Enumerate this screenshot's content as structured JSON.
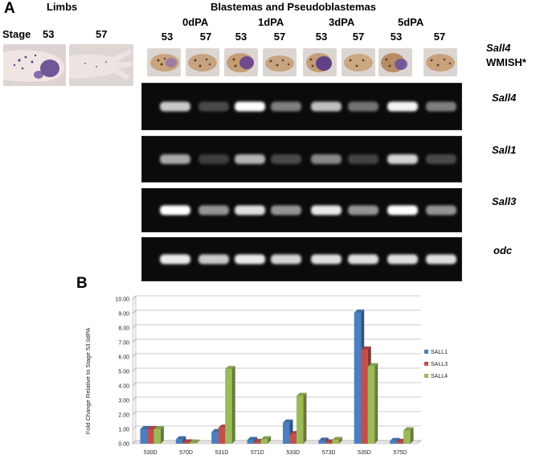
{
  "panel_a": {
    "letter": "A",
    "limbs_header": "Limbs",
    "blastemas_header": "Blastemas and Pseudoblastemas",
    "stage_label": "Stage",
    "limb_stages": [
      "53",
      "57"
    ],
    "timepoints": [
      "0dPA",
      "1dPA",
      "3dPA",
      "5dPA"
    ],
    "lane_stages": [
      "53",
      "57",
      "53",
      "57",
      "53",
      "57",
      "53",
      "57"
    ],
    "wmish_gene": "Sall4",
    "wmish_label": "WMISH*",
    "gel_rows": [
      {
        "gene": "Sall4",
        "intensity": [
          0.75,
          0.15,
          1.0,
          0.4,
          0.7,
          0.35,
          0.95,
          0.4
        ]
      },
      {
        "gene": "Sall1",
        "intensity": [
          0.6,
          0.1,
          0.65,
          0.15,
          0.45,
          0.12,
          0.8,
          0.15
        ]
      },
      {
        "gene": "Sall3",
        "intensity": [
          1.0,
          0.5,
          0.85,
          0.5,
          0.9,
          0.5,
          1.0,
          0.5
        ]
      },
      {
        "gene": "odc",
        "intensity": [
          0.9,
          0.75,
          0.9,
          0.8,
          0.85,
          0.85,
          0.85,
          0.85
        ]
      }
    ]
  },
  "panel_b": {
    "letter": "B"
  },
  "chart_data": {
    "type": "bar",
    "categories": [
      "530D",
      "570D",
      "531D",
      "571D",
      "533D",
      "573D",
      "535D",
      "575D"
    ],
    "series": [
      {
        "name": "SALL1",
        "color": "#4a7fc1",
        "values": [
          1.0,
          0.3,
          0.8,
          0.25,
          1.45,
          0.2,
          9.05,
          0.18
        ]
      },
      {
        "name": "SALL3",
        "color": "#c0504d",
        "values": [
          1.0,
          0.08,
          1.1,
          0.12,
          0.65,
          0.08,
          6.5,
          0.12
        ]
      },
      {
        "name": "SALL4",
        "color": "#9bbb59",
        "values": [
          1.0,
          0.07,
          5.15,
          0.3,
          3.3,
          0.25,
          5.35,
          0.92
        ]
      }
    ],
    "ylabel": "Fold Change Relative to Stage 53 0dPA",
    "ylim": [
      0,
      10
    ],
    "yticks": [
      "0.00",
      "1.00",
      "2.00",
      "3.00",
      "4.00",
      "5.00",
      "6.00",
      "7.00",
      "8.00",
      "9.00",
      "10.00"
    ],
    "legend_position": "right",
    "grid": true
  }
}
